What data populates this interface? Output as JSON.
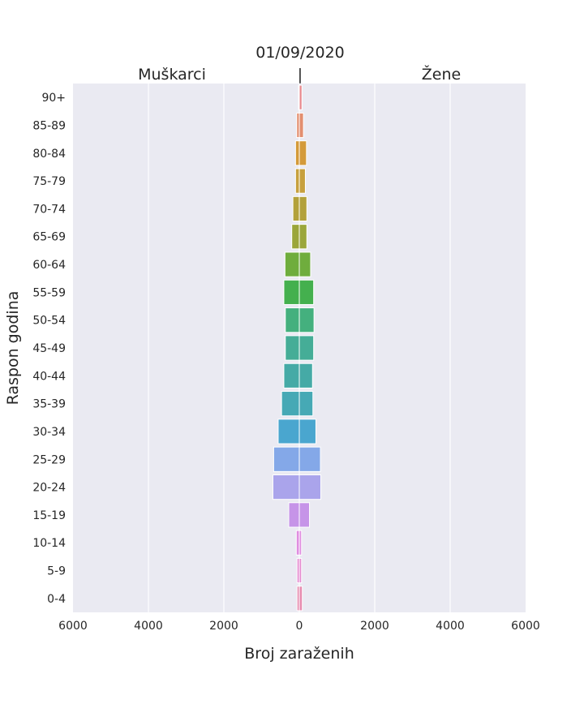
{
  "chart_data": {
    "type": "bar",
    "orientation": "horizontal",
    "layout": "population-pyramid",
    "title": "01/09/2020",
    "subtitle_left": "Muškarci",
    "subtitle_center": "|",
    "subtitle_right": "Žene",
    "xlabel": "Broj zaraženih",
    "ylabel": "Raspon godina",
    "xlim": [
      -6000,
      6000
    ],
    "xticks": [
      -6000,
      -4000,
      -2000,
      0,
      2000,
      4000,
      6000
    ],
    "xtick_labels": [
      "6000",
      "4000",
      "2000",
      "0",
      "2000",
      "4000",
      "6000"
    ],
    "grid": true,
    "categories": [
      "90+",
      "85-89",
      "80-84",
      "75-79",
      "70-74",
      "65-69",
      "60-64",
      "55-59",
      "50-54",
      "45-49",
      "40-44",
      "35-39",
      "30-34",
      "25-29",
      "20-24",
      "15-19",
      "10-14",
      "5-9",
      "0-4"
    ],
    "series": [
      {
        "name": "Muškarci",
        "values": [
          20,
          70,
          100,
          100,
          170,
          200,
          380,
          410,
          370,
          370,
          410,
          470,
          560,
          680,
          700,
          280,
          80,
          60,
          60
        ]
      },
      {
        "name": "Žene",
        "values": [
          70,
          110,
          190,
          160,
          200,
          200,
          300,
          380,
          390,
          380,
          350,
          360,
          440,
          560,
          570,
          270,
          60,
          60,
          80
        ]
      }
    ],
    "colors": [
      "#e88a8e",
      "#e38e6f",
      "#d49a39",
      "#c7a03d",
      "#b3a13a",
      "#9ba63a",
      "#6fad3d",
      "#44b04e",
      "#44b07e",
      "#45ad97",
      "#45aaa6",
      "#46a9b5",
      "#4aa6cf",
      "#84a8e8",
      "#aaa4eb",
      "#c694e8",
      "#df8ce0",
      "#e58bd0",
      "#e78cb0"
    ],
    "background_color": "#eaeaf2",
    "grid_color": "#ffffff"
  }
}
